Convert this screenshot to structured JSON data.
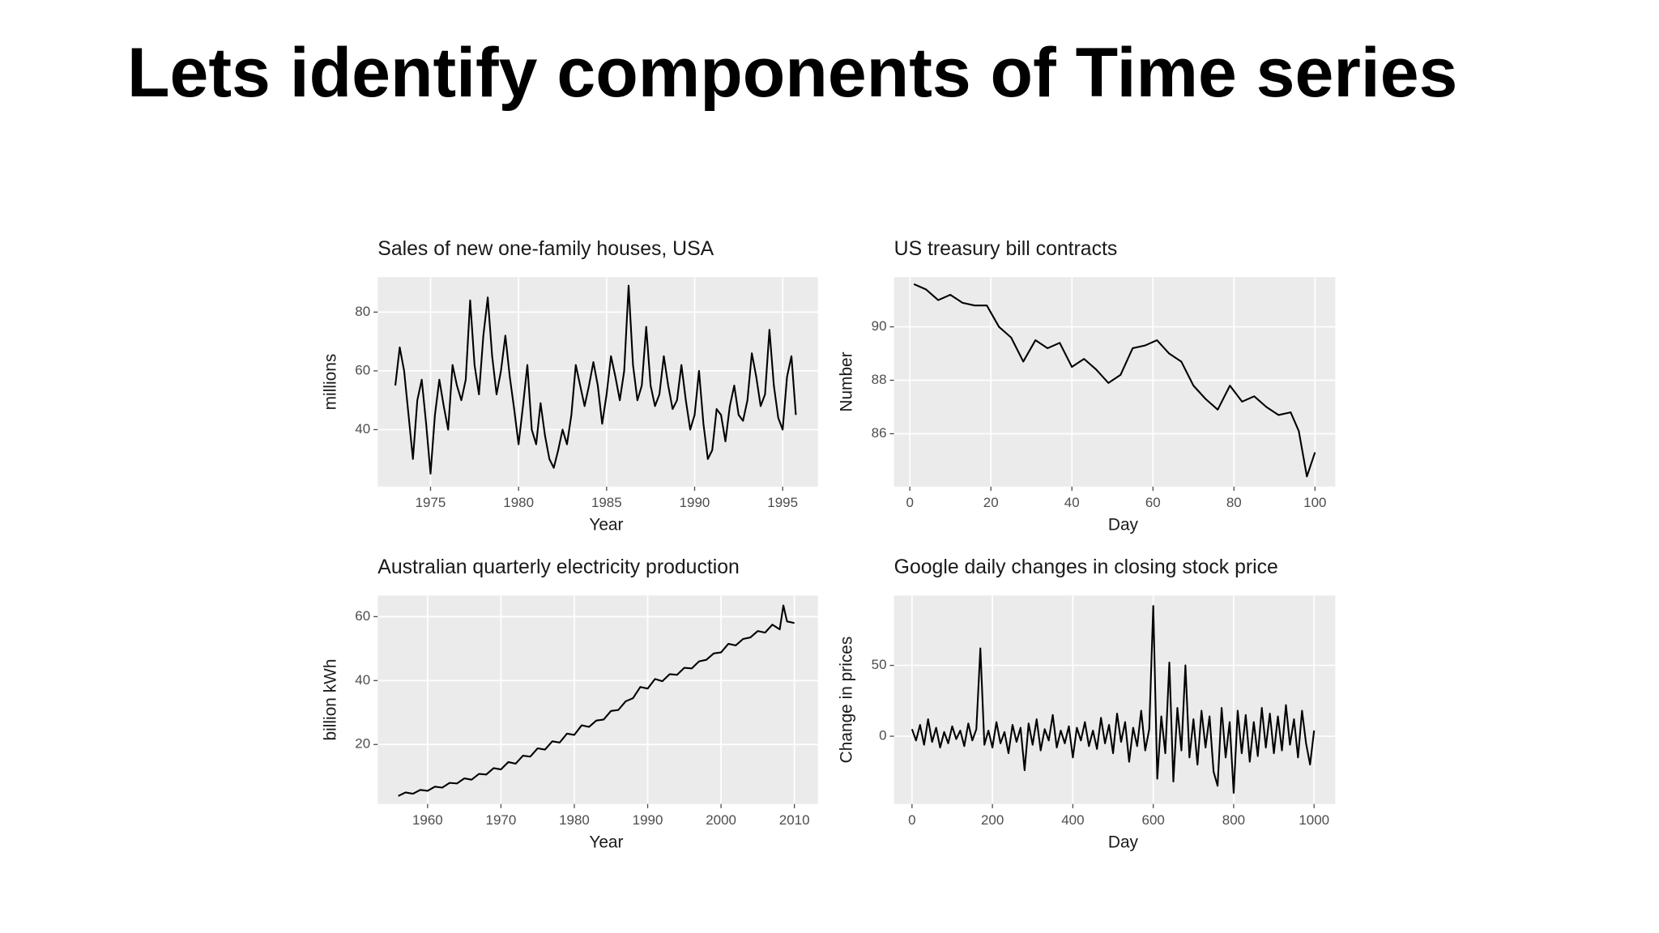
{
  "title": "Lets identify components of Time series",
  "chart_data": [
    {
      "type": "line",
      "title": "Sales of new one-family houses, USA",
      "xlabel": "Year",
      "ylabel": "millions",
      "color": "#000000",
      "grid": true,
      "xlim": [
        1972,
        1997
      ],
      "ylim": [
        20.6,
        91.9
      ],
      "xticks": [
        1975,
        1980,
        1985,
        1990,
        1995
      ],
      "yticks": [
        40,
        60,
        80
      ],
      "x": [
        1973,
        1973.25,
        1973.5,
        1973.75,
        1974,
        1974.25,
        1974.5,
        1974.75,
        1975,
        1975.25,
        1975.5,
        1975.75,
        1976,
        1976.25,
        1976.5,
        1976.75,
        1977,
        1977.25,
        1977.5,
        1977.75,
        1978,
        1978.25,
        1978.5,
        1978.75,
        1979,
        1979.25,
        1979.5,
        1979.75,
        1980,
        1980.25,
        1980.5,
        1980.75,
        1981,
        1981.25,
        1981.5,
        1981.75,
        1982,
        1982.25,
        1982.5,
        1982.75,
        1983,
        1983.25,
        1983.5,
        1983.75,
        1984,
        1984.25,
        1984.5,
        1984.75,
        1985,
        1985.25,
        1985.5,
        1985.75,
        1986,
        1986.25,
        1986.5,
        1986.75,
        1987,
        1987.25,
        1987.5,
        1987.75,
        1988,
        1988.25,
        1988.5,
        1988.75,
        1989,
        1989.25,
        1989.5,
        1989.75,
        1990,
        1990.25,
        1990.5,
        1990.75,
        1991,
        1991.25,
        1991.5,
        1991.75,
        1992,
        1992.25,
        1992.5,
        1992.75,
        1993,
        1993.25,
        1993.5,
        1993.75,
        1994,
        1994.25,
        1994.5,
        1994.75,
        1995,
        1995.25,
        1995.5,
        1995.75
      ],
      "values": [
        55,
        68,
        60,
        45,
        30,
        50,
        57,
        42,
        25,
        45,
        57,
        48,
        40,
        62,
        55,
        50,
        57,
        84,
        62,
        52,
        72,
        85,
        65,
        52,
        60,
        72,
        58,
        47,
        35,
        48,
        62,
        40,
        35,
        49,
        38,
        30,
        27,
        33,
        40,
        35,
        45,
        62,
        55,
        48,
        55,
        63,
        55,
        42,
        52,
        65,
        58,
        50,
        60,
        89,
        62,
        50,
        55,
        75,
        55,
        48,
        52,
        65,
        55,
        47,
        50,
        62,
        50,
        40,
        45,
        60,
        42,
        30,
        33,
        47,
        45,
        36,
        48,
        55,
        45,
        43,
        50,
        66,
        58,
        48,
        52,
        74,
        55,
        44,
        40,
        58,
        65,
        45
      ]
    },
    {
      "type": "line",
      "title": "US treasury bill contracts",
      "xlabel": "Day",
      "ylabel": "Number",
      "color": "#000000",
      "grid": true,
      "xlim": [
        -3.9,
        105
      ],
      "ylim": [
        84.02,
        91.86
      ],
      "xticks": [
        0,
        20,
        40,
        60,
        80,
        100
      ],
      "yticks": [
        86,
        88,
        90
      ],
      "x": [
        1,
        4,
        7,
        10,
        13,
        16,
        19,
        22,
        25,
        28,
        31,
        34,
        37,
        40,
        43,
        46,
        49,
        52,
        55,
        58,
        61,
        64,
        67,
        70,
        73,
        76,
        79,
        82,
        85,
        88,
        91,
        94,
        96,
        98,
        100
      ],
      "values": [
        91.6,
        91.4,
        91.0,
        91.2,
        90.9,
        90.8,
        90.8,
        90.0,
        89.6,
        88.7,
        89.5,
        89.2,
        89.4,
        88.5,
        88.8,
        88.4,
        87.9,
        88.2,
        89.2,
        89.3,
        89.5,
        89.0,
        88.7,
        87.8,
        87.3,
        86.9,
        87.8,
        87.2,
        87.4,
        87.0,
        86.7,
        86.8,
        86.1,
        84.4,
        85.3
      ]
    },
    {
      "type": "line",
      "title": "Australian quarterly electricity production",
      "xlabel": "Year",
      "ylabel": "billion kWh",
      "color": "#000000",
      "grid": true,
      "xlim": [
        1953.2,
        2013.2
      ],
      "ylim": [
        1.4,
        66.6
      ],
      "xticks": [
        1960,
        1970,
        1980,
        1990,
        2000,
        2010
      ],
      "yticks": [
        20,
        40,
        60
      ],
      "x": [
        1956,
        1957,
        1958,
        1959,
        1960,
        1961,
        1962,
        1963,
        1964,
        1965,
        1966,
        1967,
        1968,
        1969,
        1970,
        1971,
        1972,
        1973,
        1974,
        1975,
        1976,
        1977,
        1978,
        1979,
        1980,
        1981,
        1982,
        1983,
        1984,
        1985,
        1986,
        1987,
        1988,
        1989,
        1990,
        1991,
        1992,
        1993,
        1994,
        1995,
        1996,
        1997,
        1998,
        1999,
        2000,
        2001,
        2002,
        2003,
        2004,
        2005,
        2006,
        2007,
        2008,
        2008.5,
        2009,
        2010
      ],
      "values": [
        3.9,
        5.0,
        4.6,
        5.8,
        5.5,
        6.8,
        6.5,
        8.0,
        7.8,
        9.4,
        9.0,
        10.8,
        10.6,
        12.6,
        12.2,
        14.5,
        14.0,
        16.5,
        16.2,
        18.8,
        18.4,
        21.0,
        20.6,
        23.4,
        23.0,
        26.0,
        25.5,
        27.5,
        27.8,
        30.5,
        30.8,
        33.5,
        34.5,
        38.0,
        37.5,
        40.5,
        39.8,
        42.0,
        41.8,
        44.0,
        43.8,
        46.0,
        46.5,
        48.5,
        48.8,
        51.5,
        51.0,
        53.0,
        53.5,
        55.5,
        55.0,
        57.5,
        56.0,
        63.5,
        58.5,
        58.0
      ]
    },
    {
      "type": "line",
      "title": "Google daily changes in closing stock price",
      "xlabel": "Day",
      "ylabel": "Change in prices",
      "color": "#000000",
      "grid": true,
      "xlim": [
        -44.7,
        1052.6
      ],
      "ylim": [
        -47.8,
        99.3
      ],
      "xticks": [
        0,
        200,
        400,
        600,
        800,
        1000
      ],
      "yticks": [
        0,
        50
      ],
      "x": [
        0,
        10,
        20,
        30,
        40,
        50,
        60,
        70,
        80,
        90,
        100,
        110,
        120,
        130,
        140,
        150,
        160,
        170,
        180,
        190,
        200,
        210,
        220,
        230,
        240,
        250,
        260,
        270,
        280,
        290,
        300,
        310,
        320,
        330,
        340,
        350,
        360,
        370,
        380,
        390,
        400,
        410,
        420,
        430,
        440,
        450,
        460,
        470,
        480,
        490,
        500,
        510,
        520,
        530,
        540,
        550,
        560,
        570,
        580,
        590,
        600,
        610,
        620,
        630,
        640,
        650,
        660,
        670,
        680,
        690,
        700,
        710,
        720,
        730,
        740,
        750,
        760,
        770,
        780,
        790,
        800,
        810,
        820,
        830,
        840,
        850,
        860,
        870,
        880,
        890,
        900,
        910,
        920,
        930,
        940,
        950,
        960,
        970,
        980,
        990,
        1000
      ],
      "values": [
        5,
        -3,
        8,
        -6,
        12,
        -4,
        6,
        -8,
        3,
        -5,
        7,
        -2,
        4,
        -7,
        9,
        -3,
        5,
        62,
        -6,
        4,
        -8,
        10,
        -5,
        3,
        -12,
        8,
        -4,
        6,
        -24,
        9,
        -6,
        12,
        -10,
        5,
        -3,
        15,
        -8,
        4,
        -5,
        7,
        -15,
        6,
        -3,
        10,
        -7,
        4,
        -9,
        13,
        -5,
        8,
        -12,
        16,
        -4,
        10,
        -18,
        6,
        -7,
        18,
        -10,
        5,
        92,
        -30,
        14,
        -12,
        52,
        -32,
        20,
        -10,
        50,
        -15,
        12,
        -20,
        18,
        -8,
        14,
        -25,
        -35,
        20,
        -15,
        10,
        -40,
        18,
        -12,
        15,
        -18,
        10,
        -14,
        20,
        -8,
        16,
        -12,
        14,
        -10,
        22,
        -6,
        12,
        -15,
        18,
        -5,
        -20,
        4
      ]
    }
  ]
}
